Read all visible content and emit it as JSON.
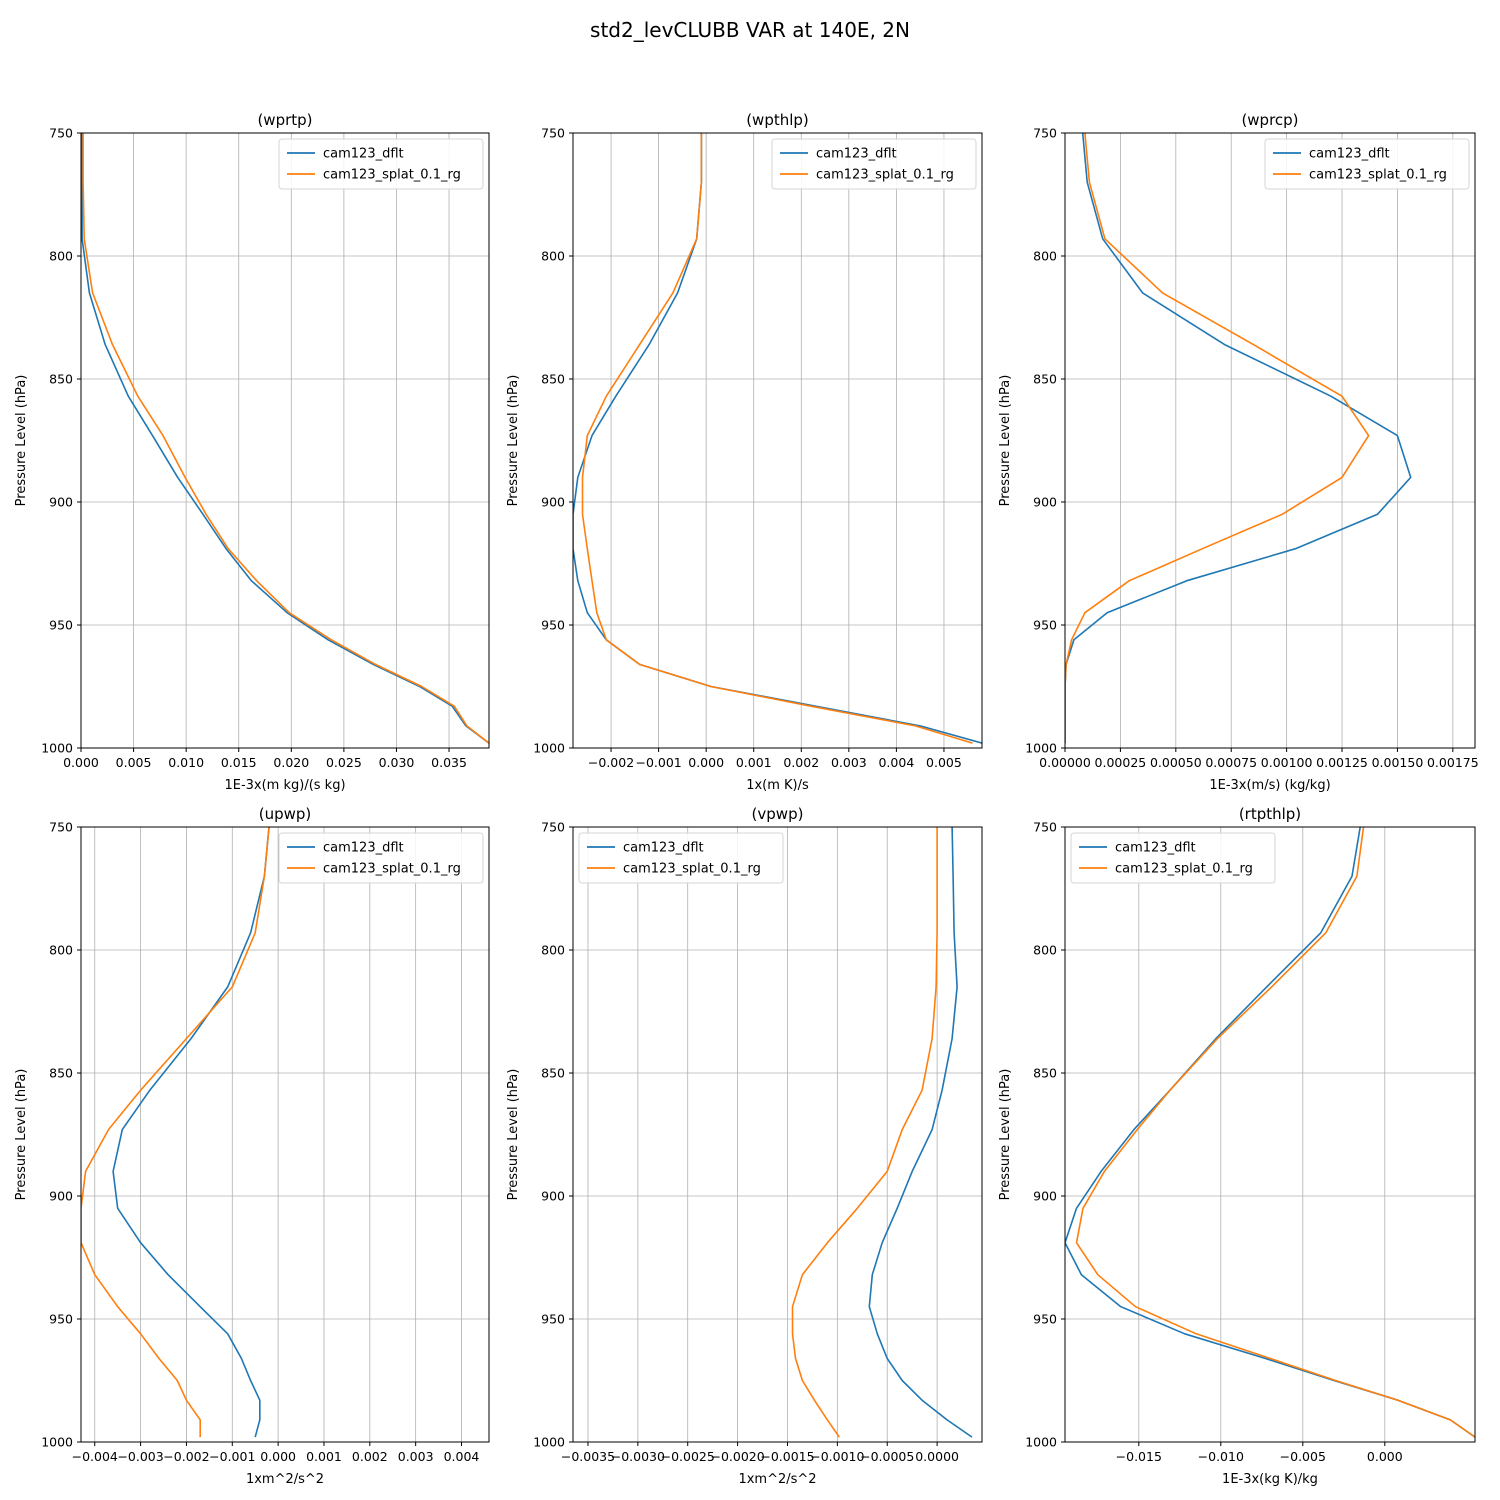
{
  "chart_data": {
    "title": "std2_levCLUBB VAR at 140E, 2N",
    "series_names": [
      "cam123_dflt",
      "cam123_splat_0.1_rg"
    ],
    "series_colors": [
      "#1f77b4",
      "#ff7f0e"
    ],
    "ylabel": "Pressure Level (hPa)",
    "ylim": [
      1000,
      750
    ],
    "yticks": [
      "750",
      "800",
      "850",
      "900",
      "950",
      "1000"
    ],
    "panels": [
      {
        "type": "line",
        "title": "(wprtp)",
        "xlabel": "1E-3x(m kg)/(s kg)",
        "xlim": [
          0,
          0.0388
        ],
        "xticks": [
          0,
          0.005,
          0.01,
          0.015,
          0.02,
          0.025,
          0.03,
          0.035
        ],
        "xtick_labels": [
          "0.000",
          "0.005",
          "0.010",
          "0.015",
          "0.020",
          "0.025",
          "0.030",
          "0.035"
        ],
        "legend": "upper-right",
        "levels": [
          750,
          770,
          793,
          815,
          836,
          857,
          873,
          890,
          905,
          919,
          932,
          945,
          956,
          966,
          975,
          983,
          991,
          998
        ],
        "series": [
          {
            "name": "cam123_dflt",
            "values": [
              0.0001,
              0.0001,
              0.0001,
              0.0008,
              0.0023,
              0.0045,
              0.0068,
              0.0092,
              0.0116,
              0.0138,
              0.0162,
              0.0196,
              0.0235,
              0.0278,
              0.0322,
              0.0353,
              0.0366,
              0.0388
            ]
          },
          {
            "name": "cam123_splat_0.1_rg",
            "values": [
              0.0002,
              0.0002,
              0.0003,
              0.0011,
              0.003,
              0.0054,
              0.0078,
              0.0099,
              0.0119,
              0.014,
              0.0167,
              0.0198,
              0.0238,
              0.028,
              0.0324,
              0.0355,
              0.0367,
              0.0388
            ]
          }
        ]
      },
      {
        "type": "line",
        "title": "(wpthlp)",
        "xlabel": "1x(m K)/s",
        "xlim": [
          -0.0028,
          0.0058
        ],
        "xticks": [
          -0.002,
          -0.001,
          0,
          0.001,
          0.002,
          0.003,
          0.004,
          0.005
        ],
        "xtick_labels": [
          "−0.002",
          "−0.001",
          "0.000",
          "0.001",
          "0.002",
          "0.003",
          "0.004",
          "0.005"
        ],
        "legend": "upper-right",
        "levels": [
          750,
          770,
          793,
          815,
          836,
          857,
          873,
          890,
          905,
          919,
          932,
          945,
          956,
          966,
          975,
          983,
          991,
          998
        ],
        "series": [
          {
            "name": "cam123_dflt",
            "values": [
              -0.0001,
              -0.0001,
              -0.0002,
              -0.0006,
              -0.0012,
              -0.0019,
              -0.0024,
              -0.0027,
              -0.0028,
              -0.0028,
              -0.0027,
              -0.0025,
              -0.0021,
              -0.0014,
              0.0001,
              0.0023,
              0.0045,
              0.0058
            ]
          },
          {
            "name": "cam123_splat_0.1_rg",
            "values": [
              -0.0001,
              -0.0001,
              -0.0002,
              -0.0007,
              -0.0014,
              -0.0021,
              -0.0025,
              -0.0026,
              -0.0026,
              -0.0025,
              -0.0024,
              -0.0023,
              -0.0021,
              -0.0014,
              0.0001,
              0.0022,
              0.0044,
              0.0056
            ]
          }
        ]
      },
      {
        "type": "line",
        "title": "(wprcp)",
        "xlabel": "1E-3x(m/s) (kg/kg)",
        "xlim": [
          0,
          0.00185
        ],
        "xticks": [
          0,
          0.00025,
          0.0005,
          0.00075,
          0.001,
          0.00125,
          0.0015,
          0.00175
        ],
        "xtick_labels": [
          "0.00000",
          "0.00025",
          "0.00050",
          "0.00075",
          "0.00100",
          "0.00125",
          "0.00150",
          "0.00175"
        ],
        "legend": "upper-right",
        "levels": [
          750,
          770,
          793,
          815,
          836,
          857,
          873,
          890,
          905,
          919,
          932,
          945,
          956,
          966,
          975,
          983,
          991,
          998
        ],
        "series": [
          {
            "name": "cam123_dflt",
            "values": [
              8e-05,
              0.0001,
              0.00017,
              0.00035,
              0.00072,
              0.0012,
              0.0015,
              0.00156,
              0.00141,
              0.00104,
              0.00055,
              0.00019,
              4e-05,
              5e-06,
              0,
              0,
              0,
              0
            ]
          },
          {
            "name": "cam123_splat_0.1_rg",
            "values": [
              9e-05,
              0.00011,
              0.00018,
              0.00044,
              0.00085,
              0.00125,
              0.00137,
              0.00125,
              0.00098,
              0.00062,
              0.00029,
              9e-05,
              3e-05,
              5e-06,
              0,
              0,
              0,
              0
            ]
          }
        ]
      },
      {
        "type": "line",
        "title": "(upwp)",
        "xlabel": "1xm^2/s^2",
        "xlim": [
          -0.0043,
          0.0046
        ],
        "xticks": [
          -0.004,
          -0.003,
          -0.002,
          -0.001,
          0,
          0.001,
          0.002,
          0.003,
          0.004
        ],
        "xtick_labels": [
          "−0.004",
          "−0.003",
          "−0.002",
          "−0.001",
          "0.000",
          "0.001",
          "0.002",
          "0.003",
          "0.004"
        ],
        "legend": "upper-right",
        "levels": [
          750,
          770,
          793,
          815,
          836,
          857,
          873,
          890,
          905,
          919,
          932,
          945,
          956,
          966,
          975,
          983,
          991,
          998
        ],
        "series": [
          {
            "name": "cam123_dflt",
            "values": [
              -0.0002,
              -0.0003,
              -0.0006,
              -0.0011,
              -0.0019,
              -0.0028,
              -0.0034,
              -0.0036,
              -0.0035,
              -0.003,
              -0.0024,
              -0.0017,
              -0.0011,
              -0.0008,
              -0.0006,
              -0.0004,
              -0.0004,
              -0.0005
            ]
          },
          {
            "name": "cam123_splat_0.1_rg",
            "values": [
              -0.0002,
              -0.0003,
              -0.0005,
              -0.001,
              -0.002,
              -0.003,
              -0.0037,
              -0.0042,
              -0.0043,
              -0.0043,
              -0.004,
              -0.0035,
              -0.003,
              -0.0026,
              -0.0022,
              -0.002,
              -0.0017,
              -0.0017
            ]
          }
        ]
      },
      {
        "type": "line",
        "title": "(vpwp)",
        "xlabel": "1xm^2/s^2",
        "xlim": [
          -0.00365,
          0.00045
        ],
        "xticks": [
          -0.0035,
          -0.003,
          -0.0025,
          -0.002,
          -0.0015,
          -0.001,
          -0.0005,
          0
        ],
        "xtick_labels": [
          "−0.0035",
          "−0.0030",
          "−0.0025",
          "−0.0020",
          "−0.0015",
          "−0.0010",
          "−0.0005",
          "0.0000"
        ],
        "legend": "upper-left",
        "levels": [
          750,
          770,
          793,
          815,
          836,
          857,
          873,
          890,
          905,
          919,
          932,
          945,
          956,
          966,
          975,
          983,
          991,
          998
        ],
        "series": [
          {
            "name": "cam123_dflt",
            "values": [
              0.00015,
              0.00016,
              0.00017,
              0.0002,
              0.00015,
              5e-05,
              -5e-05,
              -0.00025,
              -0.0004,
              -0.00055,
              -0.00065,
              -0.00068,
              -0.0006,
              -0.0005,
              -0.00035,
              -0.00015,
              0.0001,
              0.00035
            ]
          },
          {
            "name": "cam123_splat_0.1_rg",
            "values": [
              0,
              0,
              0,
              -1e-05,
              -5e-05,
              -0.00015,
              -0.00035,
              -0.0005,
              -0.0008,
              -0.0011,
              -0.00135,
              -0.00145,
              -0.00145,
              -0.00142,
              -0.00135,
              -0.00123,
              -0.0011,
              -0.00098
            ]
          }
        ]
      },
      {
        "type": "line",
        "title": "(rtpthlp)",
        "xlabel": "1E-3x(kg K)/kg",
        "xlim": [
          -0.0195,
          0.0055
        ],
        "xticks": [
          -0.015,
          -0.01,
          -0.005,
          0
        ],
        "xtick_labels": [
          "−0.015",
          "−0.010",
          "−0.005",
          "0.000"
        ],
        "legend": "upper-left",
        "levels": [
          750,
          770,
          793,
          815,
          836,
          857,
          873,
          890,
          905,
          919,
          932,
          945,
          956,
          966,
          975,
          983,
          991,
          998
        ],
        "series": [
          {
            "name": "cam123_dflt",
            "values": [
              -0.0015,
              -0.002,
              -0.0039,
              -0.0072,
              -0.0103,
              -0.0131,
              -0.0153,
              -0.0173,
              -0.0188,
              -0.0195,
              -0.0185,
              -0.0161,
              -0.0122,
              -0.0073,
              -0.0031,
              0.0008,
              0.004,
              0.0055
            ]
          },
          {
            "name": "cam123_splat_0.1_rg",
            "values": [
              -0.0013,
              -0.0017,
              -0.0036,
              -0.0069,
              -0.0102,
              -0.0131,
              -0.0151,
              -0.0171,
              -0.0184,
              -0.0188,
              -0.0175,
              -0.0152,
              -0.0115,
              -0.007,
              -0.003,
              0.0008,
              0.004,
              0.0055
            ]
          }
        ]
      }
    ]
  }
}
